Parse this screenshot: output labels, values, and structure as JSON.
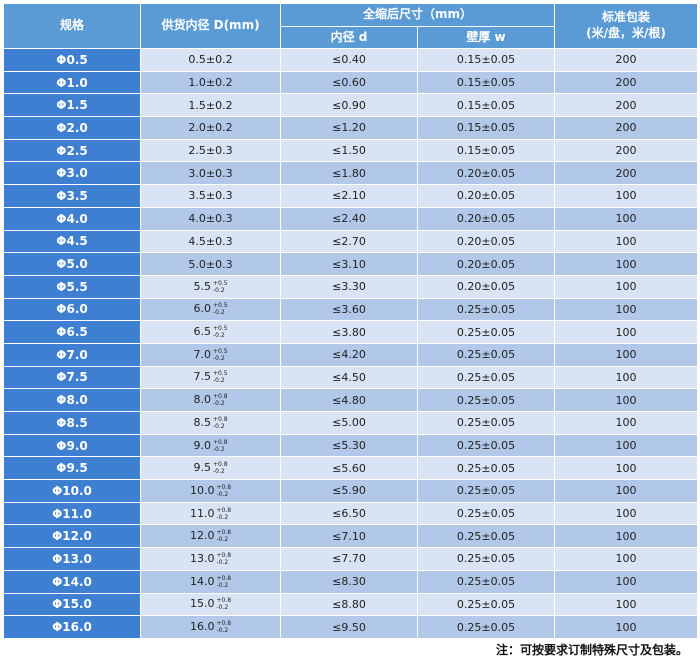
{
  "header": {
    "spec": "规格",
    "supply_id": "供货内径 D(mm)",
    "shrunk": "全缩后尺寸（mm）",
    "inner_d": "内径 d",
    "wall": "壁厚 w",
    "packaging_line1": "标准包装",
    "packaging_line2": "(米/盘，米/根)"
  },
  "rows": [
    {
      "spec": "Φ0.5",
      "supply": "0.5±0.2",
      "d": "≤0.40",
      "w": "0.15±0.05",
      "pack": "200"
    },
    {
      "spec": "Φ1.0",
      "supply": "1.0±0.2",
      "d": "≤0.60",
      "w": "0.15±0.05",
      "pack": "200"
    },
    {
      "spec": "Φ1.5",
      "supply": "1.5±0.2",
      "d": "≤0.90",
      "w": "0.15±0.05",
      "pack": "200"
    },
    {
      "spec": "Φ2.0",
      "supply": "2.0±0.2",
      "d": "≤1.20",
      "w": "0.15±0.05",
      "pack": "200"
    },
    {
      "spec": "Φ2.5",
      "supply": "2.5±0.3",
      "d": "≤1.50",
      "w": "0.15±0.05",
      "pack": "200"
    },
    {
      "spec": "Φ3.0",
      "supply": "3.0±0.3",
      "d": "≤1.80",
      "w": "0.20±0.05",
      "pack": "200"
    },
    {
      "spec": "Φ3.5",
      "supply": "3.5±0.3",
      "d": "≤2.10",
      "w": "0.20±0.05",
      "pack": "100"
    },
    {
      "spec": "Φ4.0",
      "supply": "4.0±0.3",
      "d": "≤2.40",
      "w": "0.20±0.05",
      "pack": "100"
    },
    {
      "spec": "Φ4.5",
      "supply": "4.5±0.3",
      "d": "≤2.70",
      "w": "0.20±0.05",
      "pack": "100"
    },
    {
      "spec": "Φ5.0",
      "supply": "5.0±0.3",
      "d": "≤3.10",
      "w": "0.20±0.05",
      "pack": "100"
    },
    {
      "spec": "Φ5.5",
      "supply": "5.5",
      "tol_up": "+0.5",
      "tol_down": "-0.2",
      "d": "≤3.30",
      "w": "0.20±0.05",
      "pack": "100"
    },
    {
      "spec": "Φ6.0",
      "supply": "6.0",
      "tol_up": "+0.5",
      "tol_down": "-0.2",
      "d": "≤3.60",
      "w": "0.25±0.05",
      "pack": "100"
    },
    {
      "spec": "Φ6.5",
      "supply": "6.5",
      "tol_up": "+0.5",
      "tol_down": "-0.2",
      "d": "≤3.80",
      "w": "0.25±0.05",
      "pack": "100"
    },
    {
      "spec": "Φ7.0",
      "supply": "7.0",
      "tol_up": "+0.5",
      "tol_down": "-0.2",
      "d": "≤4.20",
      "w": "0.25±0.05",
      "pack": "100"
    },
    {
      "spec": "Φ7.5",
      "supply": "7.5",
      "tol_up": "+0.5",
      "tol_down": "-0.2",
      "d": "≤4.50",
      "w": "0.25±0.05",
      "pack": "100"
    },
    {
      "spec": "Φ8.0",
      "supply": "8.0",
      "tol_up": "+0.8",
      "tol_down": "-0.2",
      "d": "≤4.80",
      "w": "0.25±0.05",
      "pack": "100"
    },
    {
      "spec": "Φ8.5",
      "supply": "8.5",
      "tol_up": "+0.8",
      "tol_down": "-0.2",
      "d": "≤5.00",
      "w": "0.25±0.05",
      "pack": "100"
    },
    {
      "spec": "Φ9.0",
      "supply": "9.0",
      "tol_up": "+0.8",
      "tol_down": "-0.2",
      "d": "≤5.30",
      "w": "0.25±0.05",
      "pack": "100"
    },
    {
      "spec": "Φ9.5",
      "supply": "9.5",
      "tol_up": "+0.8",
      "tol_down": "-0.2",
      "d": "≤5.60",
      "w": "0.25±0.05",
      "pack": "100"
    },
    {
      "spec": "Φ10.0",
      "supply": "10.0",
      "tol_up": "+0.8",
      "tol_down": "-0.2",
      "d": "≤5.90",
      "w": "0.25±0.05",
      "pack": "100"
    },
    {
      "spec": "Φ11.0",
      "supply": "11.0",
      "tol_up": "+0.8",
      "tol_down": "-0.2",
      "d": "≤6.50",
      "w": "0.25±0.05",
      "pack": "100"
    },
    {
      "spec": "Φ12.0",
      "supply": "12.0",
      "tol_up": "+0.8",
      "tol_down": "-0.2",
      "d": "≤7.10",
      "w": "0.25±0.05",
      "pack": "100"
    },
    {
      "spec": "Φ13.0",
      "supply": "13.0",
      "tol_up": "+0.8",
      "tol_down": "-0.2",
      "d": "≤7.70",
      "w": "0.25±0.05",
      "pack": "100"
    },
    {
      "spec": "Φ14.0",
      "supply": "14.0",
      "tol_up": "+0.8",
      "tol_down": "-0.2",
      "d": "≤8.30",
      "w": "0.25±0.05",
      "pack": "100"
    },
    {
      "spec": "Φ15.0",
      "supply": "15.0",
      "tol_up": "+0.8",
      "tol_down": "-0.2",
      "d": "≤8.80",
      "w": "0.25±0.05",
      "pack": "100"
    },
    {
      "spec": "Φ16.0",
      "supply": "16.0",
      "tol_up": "+0.8",
      "tol_down": "-0.2",
      "d": "≤9.50",
      "w": "0.25±0.05",
      "pack": "100"
    }
  ],
  "note": "注：可按要求订制特殊尺寸及包装。",
  "colors": {
    "header_bg": "#5b9bd5",
    "spec_bg": "#3f7fd1",
    "row_light": "#d8e3f3",
    "row_dark": "#b1c8e9"
  }
}
